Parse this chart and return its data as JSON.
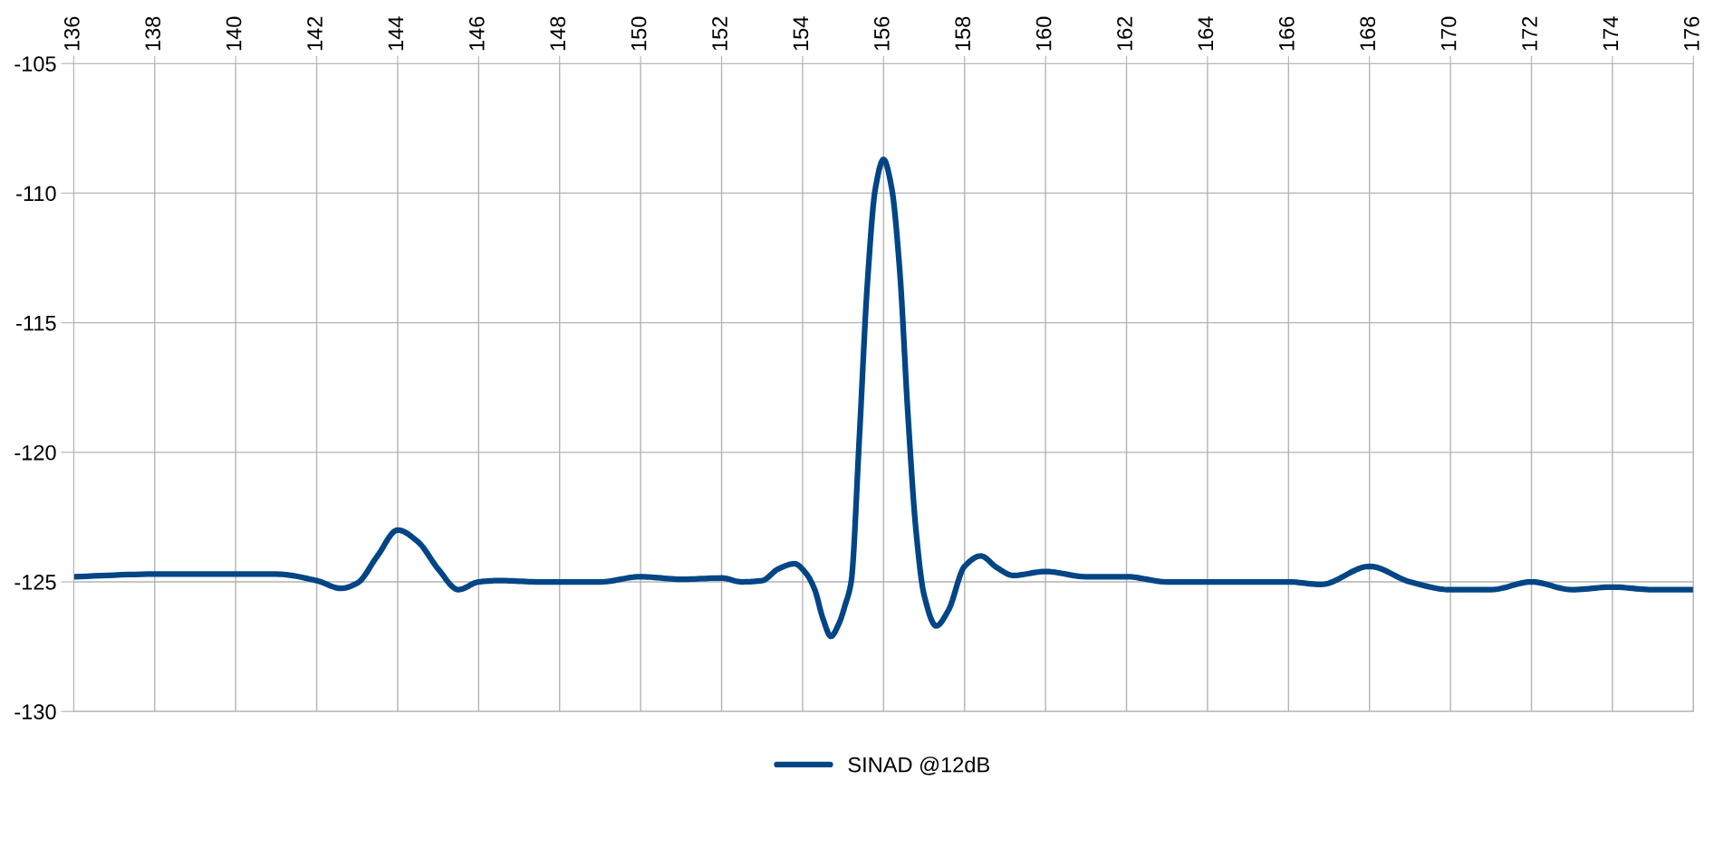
{
  "chart_data": {
    "type": "line",
    "x": [
      136,
      138,
      140,
      141,
      142,
      142.6,
      143,
      143.5,
      144,
      144.5,
      145,
      145.5,
      146,
      146.5,
      147.5,
      149,
      150,
      151,
      152,
      152.5,
      153,
      153.4,
      153.8,
      154.1,
      154.3,
      154.5,
      154.7,
      154.9,
      155.05,
      155.2,
      155.4,
      155.6,
      155.8,
      156.0,
      156.2,
      156.4,
      156.6,
      156.8,
      157.0,
      157.3,
      157.6,
      158.0,
      158.4,
      158.8,
      159.2,
      160,
      161,
      162,
      163,
      164,
      165,
      166,
      166.8,
      168,
      169,
      170,
      171,
      172,
      173,
      174,
      175,
      176
    ],
    "series": [
      {
        "name": "SINAD @12dB",
        "color": "#004586",
        "values": [
          -124.8,
          -124.7,
          -124.7,
          -124.7,
          -124.95,
          -125.25,
          -125.05,
          -124.0,
          -123.0,
          -123.45,
          -124.5,
          -125.3,
          -125.0,
          -124.95,
          -125.0,
          -125.0,
          -124.8,
          -124.9,
          -124.85,
          -125.0,
          -124.95,
          -124.5,
          -124.3,
          -124.7,
          -125.3,
          -126.4,
          -127.1,
          -126.6,
          -125.9,
          -125.0,
          -119.5,
          -113.5,
          -109.8,
          -108.7,
          -109.8,
          -113.0,
          -118.5,
          -123.0,
          -125.5,
          -126.7,
          -126.1,
          -124.4,
          -124.0,
          -124.45,
          -124.75,
          -124.6,
          -124.8,
          -124.8,
          -125.0,
          -125.0,
          -125.0,
          -125.0,
          -125.1,
          -124.4,
          -125.0,
          -125.3,
          -125.3,
          -125.0,
          -125.3,
          -125.2,
          -125.3,
          -125.3
        ]
      }
    ],
    "xlim": [
      136,
      176
    ],
    "xticks": [
      136,
      138,
      140,
      142,
      144,
      146,
      148,
      150,
      152,
      154,
      156,
      158,
      160,
      162,
      164,
      166,
      168,
      170,
      172,
      174,
      176
    ],
    "ylim": [
      -130,
      -105
    ],
    "yticks": [
      -130,
      -125,
      -120,
      -115,
      -110,
      -105
    ],
    "grid": true,
    "legend": "bottom",
    "marker": "none",
    "line_style": "solid"
  }
}
